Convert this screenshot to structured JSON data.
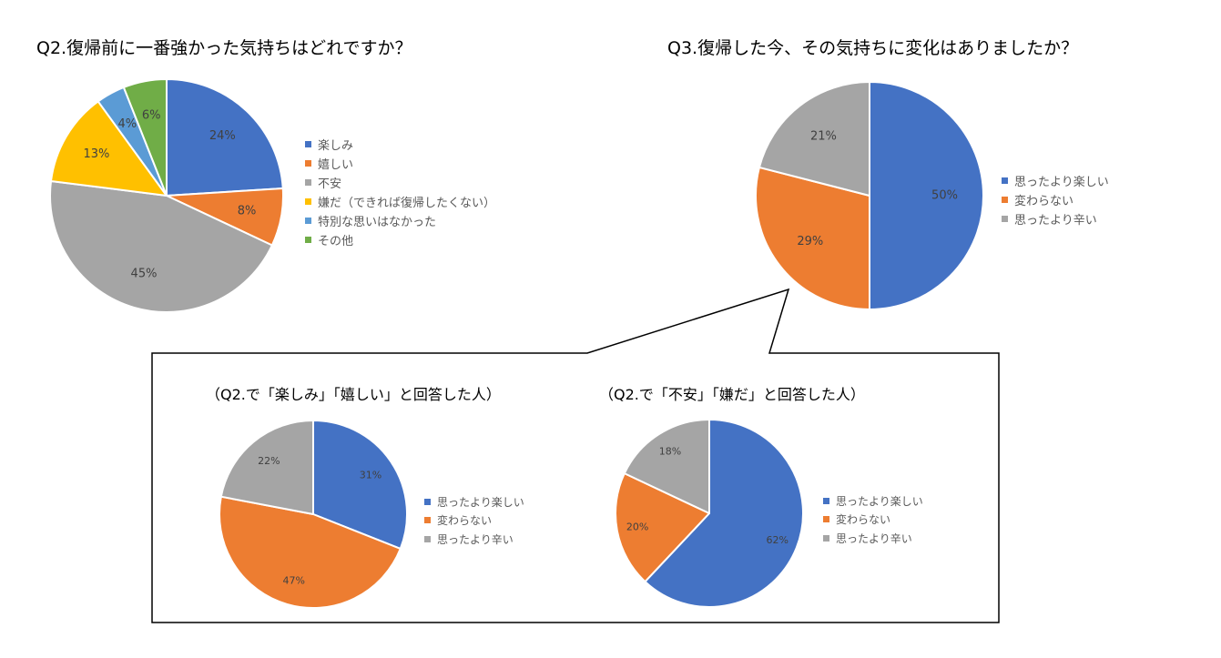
{
  "colors": {
    "blue": "#4472C4",
    "orange": "#ED7D31",
    "gray": "#A5A5A5",
    "yellow": "#FFC000",
    "lightblue": "#5B9BD5",
    "green": "#70AD47"
  },
  "chart_data": [
    {
      "type": "pie",
      "title": "Q2.復帰前に一番強かった気持ちはどれですか？",
      "categories": [
        "楽しみ",
        "嬉しい",
        "不安",
        "嫌だ（できれば復帰したくない）",
        "特別な思いはなかった",
        "その他"
      ],
      "values": [
        24,
        8,
        45,
        13,
        4,
        6
      ],
      "unit": "%",
      "legend": "right"
    },
    {
      "type": "pie",
      "title": "Q3.復帰した今、その気持ちに変化はありましたか？",
      "categories": [
        "思ったより楽しい",
        "変わらない",
        "思ったより辛い"
      ],
      "values": [
        50,
        29,
        21
      ],
      "unit": "%",
      "legend": "right"
    },
    {
      "type": "pie",
      "title": "（Q2.で「楽しみ」「嬉しい」と回答した人）",
      "categories": [
        "思ったより楽しい",
        "変わらない",
        "思ったより辛い"
      ],
      "values": [
        31,
        47,
        22
      ],
      "unit": "%",
      "legend": "right"
    },
    {
      "type": "pie",
      "title": "（Q2.で「不安」「嫌だ」と回答した人）",
      "categories": [
        "思ったより楽しい",
        "変わらない",
        "思ったより辛い"
      ],
      "values": [
        62,
        20,
        18
      ],
      "unit": "%",
      "legend": "right"
    }
  ]
}
